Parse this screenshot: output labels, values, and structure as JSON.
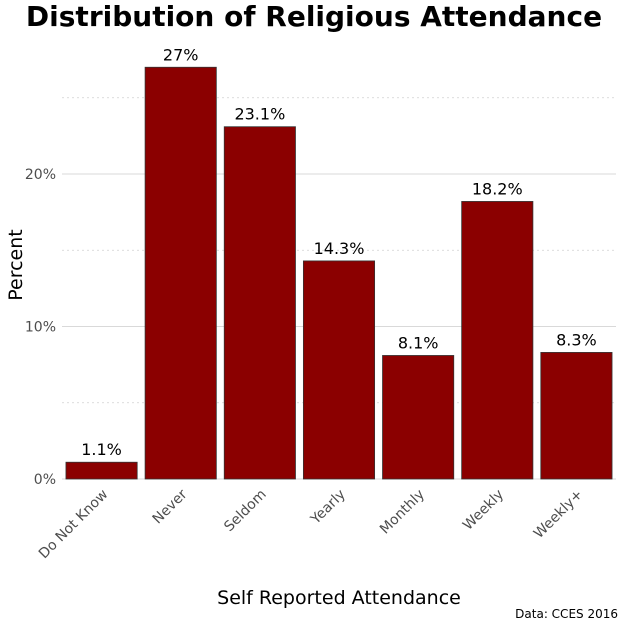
{
  "chart_data": {
    "type": "bar",
    "title": "Distribution of Religious Attendance",
    "xlabel": "Self Reported Attendance",
    "ylabel": "Percent",
    "caption": "Data: CCES 2016",
    "categories": [
      "Do Not Know",
      "Never",
      "Seldom",
      "Yearly",
      "Monthly",
      "Weekly",
      "Weekly+"
    ],
    "values": [
      1.1,
      27,
      23.1,
      14.3,
      8.1,
      18.2,
      8.3
    ],
    "value_labels": [
      "1.1%",
      "27%",
      "23.1%",
      "14.3%",
      "8.1%",
      "18.2%",
      "8.3%"
    ],
    "ylim": [
      0,
      29
    ],
    "y_ticks": [
      0,
      10,
      20
    ],
    "y_tick_labels": [
      "0%",
      "10%",
      "20%"
    ],
    "y_minor_ticks": [
      5,
      15,
      25
    ],
    "grid": true,
    "bar_color": "#8b0000"
  }
}
